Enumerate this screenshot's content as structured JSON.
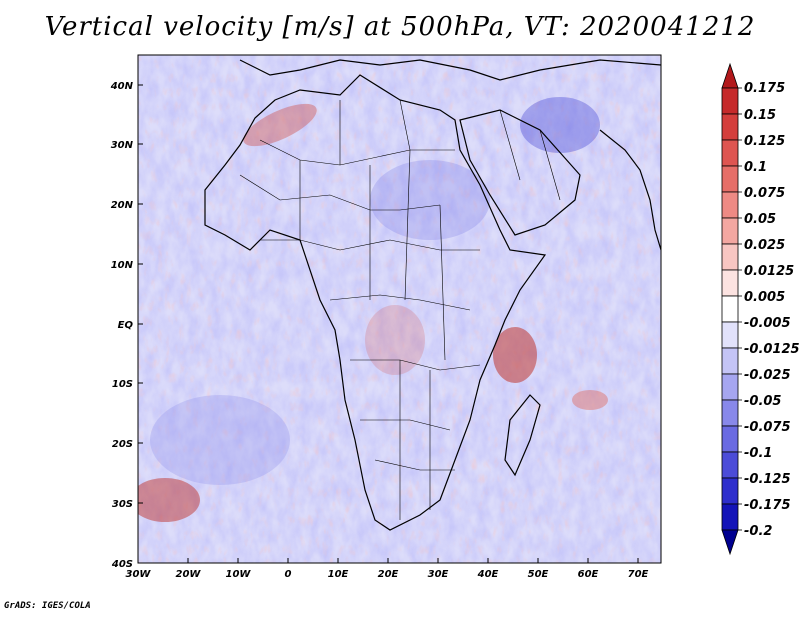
{
  "title": "Vertical velocity [m/s] at 500hPa, VT: 2020041212",
  "footer": "GrADS: IGES/COLA",
  "axes": {
    "lat_labels": [
      "40N",
      "30N",
      "20N",
      "10N",
      "EQ",
      "10S",
      "20S",
      "30S",
      "40S"
    ],
    "lon_labels": [
      "30W",
      "20W",
      "10W",
      "0",
      "10E",
      "20E",
      "30E",
      "40E",
      "50E",
      "60E",
      "70E"
    ]
  },
  "colorbar": {
    "levels": [
      "0.175",
      "0.15",
      "0.125",
      "0.1",
      "0.075",
      "0.05",
      "0.025",
      "0.0125",
      "0.005",
      "-0.005",
      "-0.0125",
      "-0.025",
      "-0.05",
      "-0.075",
      "-0.1",
      "-0.125",
      "-0.175",
      "-0.2"
    ],
    "colors": [
      "#b2181b",
      "#c62a2b",
      "#d43e3c",
      "#de5551",
      "#e66e68",
      "#ee8a84",
      "#f3a7a1",
      "#f8c6c2",
      "#fce3e1",
      "#ffffff",
      "#e2e2fb",
      "#c4c4f6",
      "#a6a6f0",
      "#8888ea",
      "#6a6ae2",
      "#4c4cd8",
      "#2e2ecc",
      "#1414b8",
      "#000090"
    ]
  }
}
